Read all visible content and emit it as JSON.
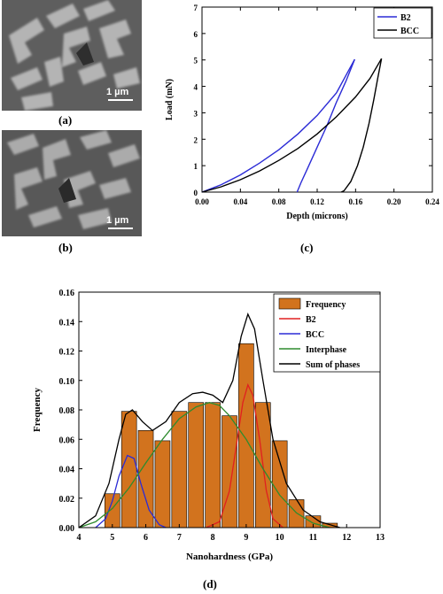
{
  "panels": {
    "a": {
      "label": "(a)",
      "scale": "1 µm"
    },
    "b": {
      "label": "(b)",
      "scale": "1 µm"
    },
    "c": {
      "label": "(c)"
    },
    "d": {
      "label": "(d)"
    }
  },
  "chart_data": [
    {
      "type": "line",
      "panel": "c",
      "xlabel": "Depth (microns)",
      "ylabel": "Load (mN)",
      "xlim": [
        0,
        0.24
      ],
      "ylim": [
        0,
        7
      ],
      "xticks": [
        "0.00",
        "0.04",
        "0.08",
        "0.12",
        "0.16",
        "0.20",
        "0.24"
      ],
      "yticks": [
        "0",
        "1",
        "2",
        "3",
        "4",
        "5",
        "6",
        "7"
      ],
      "legend_position": "top-right",
      "series": [
        {
          "name": "B2",
          "color": "#2b2bd6",
          "loading": [
            [
              0.0,
              0.0
            ],
            [
              0.02,
              0.28
            ],
            [
              0.04,
              0.65
            ],
            [
              0.06,
              1.1
            ],
            [
              0.08,
              1.6
            ],
            [
              0.1,
              2.2
            ],
            [
              0.12,
              2.9
            ],
            [
              0.14,
              3.75
            ],
            [
              0.159,
              5.02
            ]
          ],
          "unloading": [
            [
              0.159,
              5.02
            ],
            [
              0.15,
              4.2
            ],
            [
              0.14,
              3.4
            ],
            [
              0.13,
              2.5
            ],
            [
              0.12,
              1.7
            ],
            [
              0.11,
              0.9
            ],
            [
              0.103,
              0.35
            ],
            [
              0.099,
              0.0
            ]
          ]
        },
        {
          "name": "BCC",
          "color": "#000000",
          "loading": [
            [
              0.0,
              0.0
            ],
            [
              0.02,
              0.2
            ],
            [
              0.04,
              0.47
            ],
            [
              0.06,
              0.8
            ],
            [
              0.08,
              1.2
            ],
            [
              0.1,
              1.65
            ],
            [
              0.12,
              2.2
            ],
            [
              0.14,
              2.85
            ],
            [
              0.16,
              3.6
            ],
            [
              0.175,
              4.3
            ],
            [
              0.187,
              5.05
            ]
          ],
          "unloading": [
            [
              0.187,
              5.05
            ],
            [
              0.183,
              4.3
            ],
            [
              0.179,
              3.5
            ],
            [
              0.174,
              2.6
            ],
            [
              0.168,
              1.7
            ],
            [
              0.162,
              1.0
            ],
            [
              0.155,
              0.4
            ],
            [
              0.148,
              0.05
            ],
            [
              0.145,
              0.0
            ]
          ]
        }
      ]
    },
    {
      "type": "bar",
      "panel": "d",
      "xlabel": "Nanohardness (GPa)",
      "ylabel": "Frequency",
      "xlim": [
        4,
        13
      ],
      "ylim": [
        0,
        0.16
      ],
      "xticks": [
        "4",
        "5",
        "6",
        "7",
        "8",
        "9",
        "10",
        "11",
        "12",
        "13"
      ],
      "yticks": [
        "0.00",
        "0.02",
        "0.04",
        "0.06",
        "0.08",
        "0.10",
        "0.12",
        "0.14",
        "0.16"
      ],
      "legend_position": "top-right",
      "bar_width": 0.45,
      "bars": {
        "name": "Frequency",
        "color": "#d2731e",
        "x": [
          5.0,
          5.5,
          6.0,
          6.5,
          7.0,
          7.5,
          8.0,
          8.5,
          9.0,
          9.5,
          10.0,
          10.5,
          11.0,
          11.5
        ],
        "values": [
          0.023,
          0.079,
          0.066,
          0.059,
          0.079,
          0.085,
          0.085,
          0.076,
          0.125,
          0.085,
          0.059,
          0.019,
          0.008,
          0.003
        ]
      },
      "series": [
        {
          "name": "B2",
          "color": "#e02020",
          "points": [
            [
              7.8,
              0.0
            ],
            [
              8.2,
              0.004
            ],
            [
              8.5,
              0.025
            ],
            [
              8.7,
              0.055
            ],
            [
              8.9,
              0.085
            ],
            [
              9.05,
              0.097
            ],
            [
              9.2,
              0.09
            ],
            [
              9.4,
              0.06
            ],
            [
              9.6,
              0.025
            ],
            [
              9.8,
              0.006
            ],
            [
              10.1,
              0.0
            ]
          ]
        },
        {
          "name": "BCC",
          "color": "#2b2bd6",
          "points": [
            [
              4.5,
              0.0
            ],
            [
              4.8,
              0.006
            ],
            [
              5.0,
              0.018
            ],
            [
              5.2,
              0.035
            ],
            [
              5.45,
              0.049
            ],
            [
              5.65,
              0.047
            ],
            [
              5.85,
              0.03
            ],
            [
              6.1,
              0.012
            ],
            [
              6.4,
              0.002
            ],
            [
              6.6,
              0.0
            ]
          ]
        },
        {
          "name": "Interphase",
          "color": "#2e8b2e",
          "points": [
            [
              4.0,
              0.0
            ],
            [
              4.5,
              0.004
            ],
            [
              5.0,
              0.013
            ],
            [
              5.5,
              0.027
            ],
            [
              6.0,
              0.044
            ],
            [
              6.5,
              0.06
            ],
            [
              7.0,
              0.074
            ],
            [
              7.5,
              0.082
            ],
            [
              7.9,
              0.085
            ],
            [
              8.2,
              0.083
            ],
            [
              8.5,
              0.076
            ],
            [
              9.0,
              0.06
            ],
            [
              9.5,
              0.04
            ],
            [
              10.0,
              0.022
            ],
            [
              10.5,
              0.01
            ],
            [
              11.0,
              0.003
            ],
            [
              11.5,
              0.0
            ]
          ]
        },
        {
          "name": "Sum of phases",
          "color": "#000000",
          "points": [
            [
              4.0,
              0.0
            ],
            [
              4.5,
              0.008
            ],
            [
              4.9,
              0.03
            ],
            [
              5.2,
              0.06
            ],
            [
              5.4,
              0.077
            ],
            [
              5.6,
              0.08
            ],
            [
              5.9,
              0.072
            ],
            [
              6.2,
              0.066
            ],
            [
              6.6,
              0.072
            ],
            [
              7.0,
              0.085
            ],
            [
              7.4,
              0.091
            ],
            [
              7.7,
              0.092
            ],
            [
              8.0,
              0.09
            ],
            [
              8.3,
              0.085
            ],
            [
              8.6,
              0.1
            ],
            [
              8.85,
              0.13
            ],
            [
              9.05,
              0.145
            ],
            [
              9.25,
              0.135
            ],
            [
              9.5,
              0.1
            ],
            [
              9.8,
              0.06
            ],
            [
              10.2,
              0.03
            ],
            [
              10.7,
              0.012
            ],
            [
              11.2,
              0.004
            ],
            [
              11.8,
              0.0
            ]
          ]
        }
      ]
    }
  ]
}
